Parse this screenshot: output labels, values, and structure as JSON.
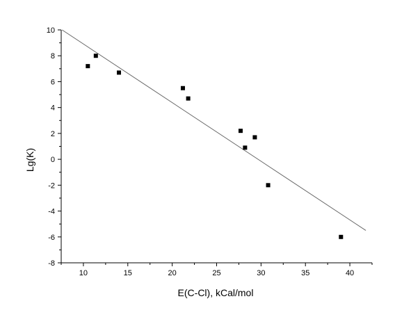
{
  "chart_data": {
    "type": "scatter",
    "title": "",
    "xlabel": "E(C-Cl), kCal/mol",
    "ylabel": "Lg(K)",
    "xlim": [
      7.5,
      42.5
    ],
    "ylim": [
      -8,
      10
    ],
    "x_ticks": [
      "10",
      "15",
      "20",
      "25",
      "30",
      "35",
      "40"
    ],
    "y_ticks": [
      "10",
      "8",
      "6",
      "4",
      "2",
      "0",
      "-2",
      "-4",
      "-6",
      "-8"
    ],
    "points": [
      {
        "x": 10.5,
        "y": 7.2
      },
      {
        "x": 11.4,
        "y": 8.0
      },
      {
        "x": 14.0,
        "y": 6.7
      },
      {
        "x": 21.2,
        "y": 5.5
      },
      {
        "x": 21.8,
        "y": 4.7
      },
      {
        "x": 27.7,
        "y": 2.2
      },
      {
        "x": 28.2,
        "y": 0.9
      },
      {
        "x": 29.3,
        "y": 1.7
      },
      {
        "x": 30.8,
        "y": -2.0
      },
      {
        "x": 39.0,
        "y": -6.0
      }
    ],
    "fit_line": [
      {
        "x": 7.6,
        "y": 10.0
      },
      {
        "x": 41.8,
        "y": -5.5
      }
    ],
    "marker_color": "#000000",
    "line_color": "#666666",
    "grid": false,
    "legend": "none"
  }
}
